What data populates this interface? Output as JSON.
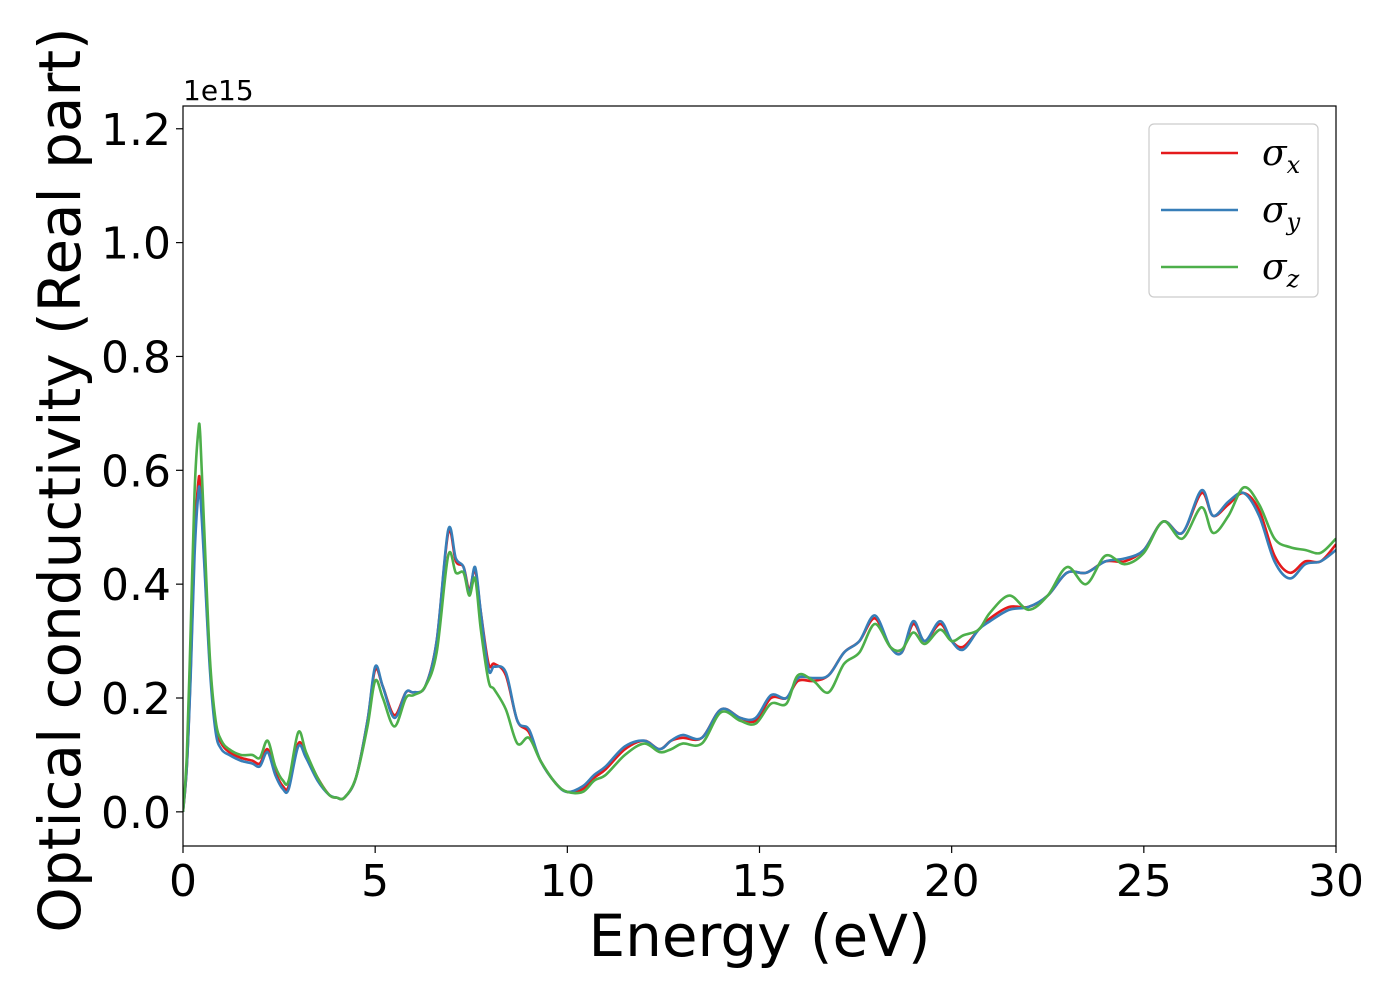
{
  "chart_data": {
    "type": "line",
    "title": "",
    "xlabel": "Energy (eV)",
    "ylabel": "Optical conductivity (Real part)",
    "y_offset_label": "1e15",
    "xlim": [
      0,
      30
    ],
    "ylim": [
      -0.06,
      1.24
    ],
    "x_ticks": [
      0,
      5,
      10,
      15,
      20,
      25,
      30
    ],
    "x_tick_labels": [
      "0",
      "5",
      "10",
      "15",
      "20",
      "25",
      "30"
    ],
    "y_ticks": [
      0.0,
      0.2,
      0.4,
      0.6,
      0.8,
      1.0,
      1.2
    ],
    "y_tick_labels": [
      "0.0",
      "0.2",
      "0.4",
      "0.6",
      "0.8",
      "1.0",
      "1.2"
    ],
    "grid": false,
    "legend_position": "top-right",
    "series": [
      {
        "name": "σx",
        "symbol": "σ",
        "subscript": "x",
        "color": "#e41a1c",
        "points": [
          [
            0,
            0
          ],
          [
            0.1,
            0.08
          ],
          [
            0.2,
            0.25
          ],
          [
            0.3,
            0.47
          ],
          [
            0.4,
            0.58
          ],
          [
            0.45,
            0.57
          ],
          [
            0.55,
            0.45
          ],
          [
            0.7,
            0.26
          ],
          [
            0.85,
            0.15
          ],
          [
            1.0,
            0.12
          ],
          [
            1.2,
            0.105
          ],
          [
            1.5,
            0.095
          ],
          [
            1.8,
            0.09
          ],
          [
            2.0,
            0.085
          ],
          [
            2.2,
            0.11
          ],
          [
            2.4,
            0.07
          ],
          [
            2.6,
            0.045
          ],
          [
            2.75,
            0.045
          ],
          [
            3.0,
            0.12
          ],
          [
            3.2,
            0.1
          ],
          [
            3.5,
            0.06
          ],
          [
            3.8,
            0.03
          ],
          [
            4.0,
            0.025
          ],
          [
            4.2,
            0.025
          ],
          [
            4.5,
            0.06
          ],
          [
            4.8,
            0.16
          ],
          [
            5.0,
            0.25
          ],
          [
            5.2,
            0.22
          ],
          [
            5.5,
            0.17
          ],
          [
            5.8,
            0.21
          ],
          [
            6.0,
            0.21
          ],
          [
            6.3,
            0.22
          ],
          [
            6.6,
            0.3
          ],
          [
            6.9,
            0.49
          ],
          [
            7.1,
            0.44
          ],
          [
            7.3,
            0.43
          ],
          [
            7.45,
            0.39
          ],
          [
            7.6,
            0.425
          ],
          [
            7.75,
            0.35
          ],
          [
            7.95,
            0.26
          ],
          [
            8.1,
            0.26
          ],
          [
            8.4,
            0.24
          ],
          [
            8.7,
            0.16
          ],
          [
            9.0,
            0.14
          ],
          [
            9.3,
            0.09
          ],
          [
            9.7,
            0.05
          ],
          [
            10.0,
            0.035
          ],
          [
            10.4,
            0.04
          ],
          [
            10.7,
            0.06
          ],
          [
            11.0,
            0.075
          ],
          [
            11.5,
            0.11
          ],
          [
            12.0,
            0.125
          ],
          [
            12.4,
            0.11
          ],
          [
            12.7,
            0.125
          ],
          [
            13.0,
            0.13
          ],
          [
            13.5,
            0.13
          ],
          [
            14.0,
            0.18
          ],
          [
            14.5,
            0.165
          ],
          [
            14.9,
            0.16
          ],
          [
            15.3,
            0.2
          ],
          [
            15.7,
            0.2
          ],
          [
            16.0,
            0.23
          ],
          [
            16.4,
            0.23
          ],
          [
            16.8,
            0.24
          ],
          [
            17.2,
            0.28
          ],
          [
            17.6,
            0.3
          ],
          [
            18.0,
            0.34
          ],
          [
            18.4,
            0.29
          ],
          [
            18.7,
            0.28
          ],
          [
            19.0,
            0.33
          ],
          [
            19.3,
            0.3
          ],
          [
            19.7,
            0.33
          ],
          [
            20.0,
            0.3
          ],
          [
            20.3,
            0.29
          ],
          [
            20.7,
            0.32
          ],
          [
            21.0,
            0.34
          ],
          [
            21.5,
            0.36
          ],
          [
            22.0,
            0.36
          ],
          [
            22.5,
            0.38
          ],
          [
            23.0,
            0.42
          ],
          [
            23.5,
            0.42
          ],
          [
            24.0,
            0.44
          ],
          [
            24.5,
            0.44
          ],
          [
            25.0,
            0.46
          ],
          [
            25.5,
            0.51
          ],
          [
            26.0,
            0.49
          ],
          [
            26.5,
            0.56
          ],
          [
            26.8,
            0.52
          ],
          [
            27.2,
            0.54
          ],
          [
            27.6,
            0.56
          ],
          [
            28.0,
            0.53
          ],
          [
            28.4,
            0.45
          ],
          [
            28.8,
            0.42
          ],
          [
            29.2,
            0.44
          ],
          [
            29.6,
            0.44
          ],
          [
            30.0,
            0.47
          ]
        ]
      },
      {
        "name": "σy",
        "symbol": "σ",
        "subscript": "y",
        "color": "#377eb8",
        "points": [
          [
            0,
            0
          ],
          [
            0.1,
            0.08
          ],
          [
            0.2,
            0.24
          ],
          [
            0.3,
            0.45
          ],
          [
            0.4,
            0.56
          ],
          [
            0.45,
            0.555
          ],
          [
            0.55,
            0.44
          ],
          [
            0.7,
            0.25
          ],
          [
            0.85,
            0.14
          ],
          [
            1.0,
            0.11
          ],
          [
            1.2,
            0.1
          ],
          [
            1.5,
            0.09
          ],
          [
            1.8,
            0.085
          ],
          [
            2.0,
            0.08
          ],
          [
            2.2,
            0.105
          ],
          [
            2.4,
            0.065
          ],
          [
            2.6,
            0.04
          ],
          [
            2.75,
            0.04
          ],
          [
            3.0,
            0.115
          ],
          [
            3.2,
            0.095
          ],
          [
            3.5,
            0.055
          ],
          [
            3.8,
            0.03
          ],
          [
            4.0,
            0.025
          ],
          [
            4.2,
            0.025
          ],
          [
            4.5,
            0.06
          ],
          [
            4.8,
            0.16
          ],
          [
            5.0,
            0.255
          ],
          [
            5.2,
            0.22
          ],
          [
            5.5,
            0.165
          ],
          [
            5.8,
            0.21
          ],
          [
            6.0,
            0.21
          ],
          [
            6.3,
            0.22
          ],
          [
            6.6,
            0.3
          ],
          [
            6.9,
            0.495
          ],
          [
            7.1,
            0.445
          ],
          [
            7.3,
            0.43
          ],
          [
            7.45,
            0.385
          ],
          [
            7.6,
            0.43
          ],
          [
            7.75,
            0.35
          ],
          [
            7.95,
            0.25
          ],
          [
            8.1,
            0.255
          ],
          [
            8.4,
            0.245
          ],
          [
            8.7,
            0.16
          ],
          [
            9.0,
            0.145
          ],
          [
            9.3,
            0.09
          ],
          [
            9.7,
            0.05
          ],
          [
            10.0,
            0.035
          ],
          [
            10.4,
            0.045
          ],
          [
            10.7,
            0.065
          ],
          [
            11.0,
            0.08
          ],
          [
            11.5,
            0.115
          ],
          [
            12.0,
            0.125
          ],
          [
            12.4,
            0.11
          ],
          [
            12.7,
            0.125
          ],
          [
            13.0,
            0.135
          ],
          [
            13.5,
            0.13
          ],
          [
            14.0,
            0.18
          ],
          [
            14.5,
            0.165
          ],
          [
            14.9,
            0.165
          ],
          [
            15.3,
            0.205
          ],
          [
            15.7,
            0.2
          ],
          [
            16.0,
            0.235
          ],
          [
            16.4,
            0.235
          ],
          [
            16.8,
            0.24
          ],
          [
            17.2,
            0.28
          ],
          [
            17.6,
            0.3
          ],
          [
            18.0,
            0.345
          ],
          [
            18.4,
            0.29
          ],
          [
            18.7,
            0.28
          ],
          [
            19.0,
            0.335
          ],
          [
            19.3,
            0.3
          ],
          [
            19.7,
            0.335
          ],
          [
            20.0,
            0.3
          ],
          [
            20.3,
            0.285
          ],
          [
            20.7,
            0.32
          ],
          [
            21.0,
            0.335
          ],
          [
            21.5,
            0.355
          ],
          [
            22.0,
            0.36
          ],
          [
            22.5,
            0.38
          ],
          [
            23.0,
            0.42
          ],
          [
            23.5,
            0.42
          ],
          [
            24.0,
            0.44
          ],
          [
            24.5,
            0.445
          ],
          [
            25.0,
            0.46
          ],
          [
            25.5,
            0.51
          ],
          [
            26.0,
            0.49
          ],
          [
            26.5,
            0.565
          ],
          [
            26.8,
            0.52
          ],
          [
            27.2,
            0.545
          ],
          [
            27.6,
            0.56
          ],
          [
            28.0,
            0.52
          ],
          [
            28.4,
            0.44
          ],
          [
            28.8,
            0.41
          ],
          [
            29.2,
            0.435
          ],
          [
            29.6,
            0.44
          ],
          [
            30.0,
            0.46
          ]
        ]
      },
      {
        "name": "σz",
        "symbol": "σ",
        "subscript": "z",
        "color": "#4daf4a",
        "points": [
          [
            0,
            0
          ],
          [
            0.1,
            0.1
          ],
          [
            0.2,
            0.32
          ],
          [
            0.3,
            0.56
          ],
          [
            0.4,
            0.67
          ],
          [
            0.45,
            0.66
          ],
          [
            0.55,
            0.5
          ],
          [
            0.7,
            0.27
          ],
          [
            0.85,
            0.16
          ],
          [
            1.0,
            0.125
          ],
          [
            1.2,
            0.11
          ],
          [
            1.5,
            0.1
          ],
          [
            1.8,
            0.1
          ],
          [
            2.0,
            0.095
          ],
          [
            2.2,
            0.125
          ],
          [
            2.4,
            0.08
          ],
          [
            2.6,
            0.055
          ],
          [
            2.75,
            0.055
          ],
          [
            3.0,
            0.14
          ],
          [
            3.2,
            0.105
          ],
          [
            3.5,
            0.06
          ],
          [
            3.8,
            0.03
          ],
          [
            4.0,
            0.025
          ],
          [
            4.2,
            0.025
          ],
          [
            4.5,
            0.06
          ],
          [
            4.8,
            0.15
          ],
          [
            5.0,
            0.23
          ],
          [
            5.2,
            0.2
          ],
          [
            5.5,
            0.15
          ],
          [
            5.8,
            0.2
          ],
          [
            6.0,
            0.205
          ],
          [
            6.3,
            0.22
          ],
          [
            6.6,
            0.28
          ],
          [
            6.9,
            0.45
          ],
          [
            7.1,
            0.42
          ],
          [
            7.3,
            0.42
          ],
          [
            7.45,
            0.38
          ],
          [
            7.6,
            0.41
          ],
          [
            7.75,
            0.32
          ],
          [
            7.95,
            0.23
          ],
          [
            8.1,
            0.215
          ],
          [
            8.4,
            0.18
          ],
          [
            8.7,
            0.12
          ],
          [
            9.0,
            0.13
          ],
          [
            9.3,
            0.09
          ],
          [
            9.7,
            0.05
          ],
          [
            10.0,
            0.035
          ],
          [
            10.4,
            0.035
          ],
          [
            10.7,
            0.055
          ],
          [
            11.0,
            0.065
          ],
          [
            11.5,
            0.1
          ],
          [
            12.0,
            0.12
          ],
          [
            12.4,
            0.105
          ],
          [
            12.7,
            0.11
          ],
          [
            13.0,
            0.12
          ],
          [
            13.5,
            0.12
          ],
          [
            14.0,
            0.175
          ],
          [
            14.5,
            0.16
          ],
          [
            14.9,
            0.155
          ],
          [
            15.3,
            0.19
          ],
          [
            15.7,
            0.19
          ],
          [
            16.0,
            0.24
          ],
          [
            16.4,
            0.23
          ],
          [
            16.8,
            0.21
          ],
          [
            17.2,
            0.26
          ],
          [
            17.6,
            0.28
          ],
          [
            18.0,
            0.33
          ],
          [
            18.4,
            0.29
          ],
          [
            18.7,
            0.285
          ],
          [
            19.0,
            0.315
          ],
          [
            19.3,
            0.295
          ],
          [
            19.7,
            0.32
          ],
          [
            20.0,
            0.3
          ],
          [
            20.3,
            0.31
          ],
          [
            20.7,
            0.32
          ],
          [
            21.0,
            0.35
          ],
          [
            21.5,
            0.38
          ],
          [
            22.0,
            0.355
          ],
          [
            22.5,
            0.38
          ],
          [
            23.0,
            0.43
          ],
          [
            23.5,
            0.4
          ],
          [
            24.0,
            0.45
          ],
          [
            24.5,
            0.435
          ],
          [
            25.0,
            0.455
          ],
          [
            25.5,
            0.51
          ],
          [
            26.0,
            0.48
          ],
          [
            26.5,
            0.535
          ],
          [
            26.8,
            0.49
          ],
          [
            27.2,
            0.52
          ],
          [
            27.6,
            0.57
          ],
          [
            28.0,
            0.54
          ],
          [
            28.4,
            0.48
          ],
          [
            28.8,
            0.465
          ],
          [
            29.2,
            0.46
          ],
          [
            29.6,
            0.455
          ],
          [
            30.0,
            0.48
          ]
        ]
      }
    ]
  }
}
